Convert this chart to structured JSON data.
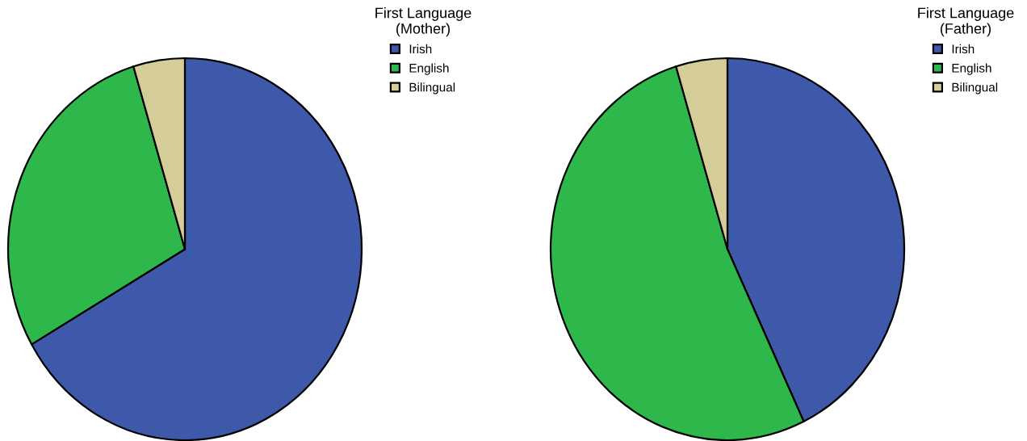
{
  "chart_data": [
    {
      "type": "pie",
      "legend_title": "First Language\n(Mother)",
      "categories": [
        "Irish",
        "English",
        "Bilingual"
      ],
      "values": [
        66.7,
        28.6,
        4.7
      ],
      "colors": [
        "#3f59aa",
        "#2eb84b",
        "#d4cd98"
      ],
      "legend": "top right"
    },
    {
      "type": "pie",
      "legend_title": "First Language\n(Father)",
      "categories": [
        "Irish",
        "English",
        "Bilingual"
      ],
      "values": [
        42.9,
        52.4,
        4.7
      ],
      "colors": [
        "#3f59aa",
        "#2eb84b",
        "#d4cd98"
      ],
      "legend": "top right"
    }
  ]
}
